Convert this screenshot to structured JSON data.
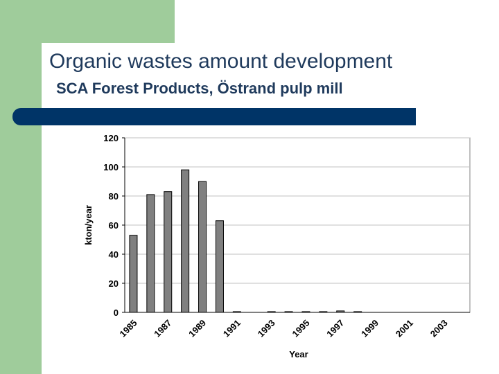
{
  "slide": {
    "title": "Organic wastes amount development",
    "subtitle": "SCA Forest Products, Östrand pulp mill",
    "colors": {
      "green": "#9fcc9b",
      "bar_accent": "#003467",
      "title_text": "#1f3a5c"
    }
  },
  "chart_data": {
    "type": "bar",
    "title": "",
    "xlabel": "Year",
    "ylabel": "kton/year",
    "categories": [
      "1985",
      "1986",
      "1987",
      "1988",
      "1989",
      "1990",
      "1991",
      "1992",
      "1993",
      "1994",
      "1995",
      "1996",
      "1997",
      "1998",
      "1999",
      "2000",
      "2001",
      "2002",
      "2003",
      "2004"
    ],
    "x_tick_labels": [
      "1985",
      "1987",
      "1989",
      "1991",
      "1993",
      "1995",
      "1997",
      "1999",
      "2001",
      "2003"
    ],
    "values": [
      53,
      81,
      83,
      98,
      90,
      63,
      0.5,
      0,
      0.5,
      0.5,
      0.5,
      0.5,
      1,
      0.5,
      0,
      0,
      0,
      0,
      0,
      0
    ],
    "ylim": [
      0,
      120
    ],
    "yticks": [
      0,
      20,
      40,
      60,
      80,
      100,
      120
    ],
    "grid": true,
    "bar_color": "#808080",
    "bar_edge_color": "#000000",
    "grid_color": "#c0c0c0"
  }
}
